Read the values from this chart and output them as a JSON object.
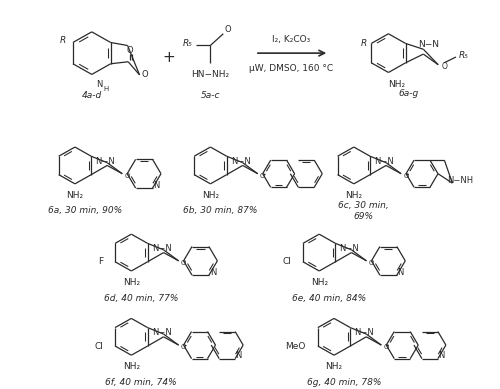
{
  "background": "#ffffff",
  "figsize": [
    5.0,
    3.89
  ],
  "dpi": 100,
  "bond_color": "#2a2a2a",
  "font_size": 6.5,
  "line_width": 0.9,
  "labels": {
    "4ad": "4a-d",
    "5ac": "5a-c",
    "6ag": "6a-g",
    "6a": "6a, 30 min, 90%",
    "6b": "6b, 30 min, 87%",
    "6c": "6c, 30 min,\n69%",
    "6d": "6d, 40 min, 77%",
    "6e": "6e, 40 min, 84%",
    "6f": "6f, 40 min, 74%",
    "6g": "6g, 40 min, 78%"
  },
  "arrow_top": "I₂, K₂CO₃",
  "arrow_bottom": "μW, DMSO, 160 °C"
}
